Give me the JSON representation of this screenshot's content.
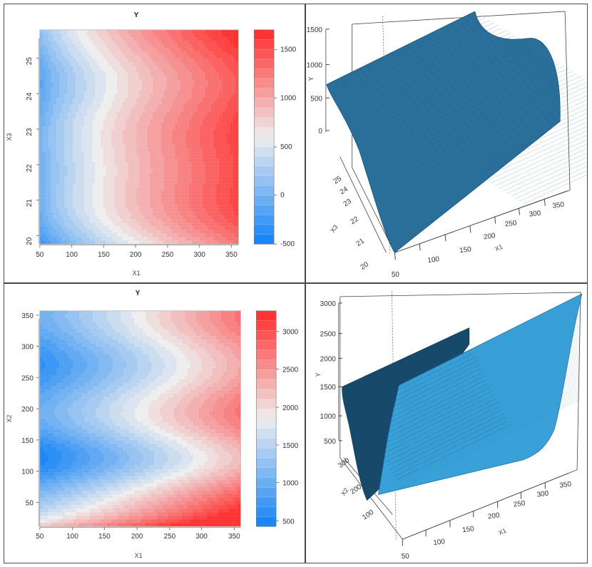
{
  "chart_data": [
    {
      "type": "heatmap",
      "title": "Y",
      "xlabel": "X1",
      "ylabel": "X3",
      "xlim": [
        50,
        360
      ],
      "ylim": [
        19.8,
        25.7
      ],
      "x_ticks": [
        "50",
        "100",
        "150",
        "200",
        "250",
        "300",
        "350"
      ],
      "y_ticks": [
        "20",
        "21",
        "22",
        "23",
        "24",
        "25"
      ],
      "colorbar_ticks": [
        "-500",
        "0",
        "500",
        "1000",
        "1500"
      ],
      "color_range": [
        -500,
        1700
      ],
      "colors": {
        "low": "#1a86f5",
        "mid": "#eeeeee",
        "high": "#ff3333"
      }
    },
    {
      "type": "surface",
      "zlabel": "Y",
      "xlabel": "X1",
      "ylabel": "X3",
      "z_ticks": [
        "0",
        "500",
        "1000",
        "1500"
      ],
      "y_ticks": [
        "20",
        "21",
        "22",
        "23",
        "24",
        "25"
      ],
      "x_ticks": [
        "50",
        "100",
        "150",
        "200",
        "250",
        "300",
        "350"
      ],
      "colors": {
        "surface": "#2a6f9a",
        "light": "#4f9bd0",
        "dark": "#184d70"
      }
    },
    {
      "type": "heatmap",
      "title": "Y",
      "xlabel": "X1",
      "ylabel": "X2",
      "xlim": [
        50,
        360
      ],
      "ylim": [
        10,
        355
      ],
      "x_ticks": [
        "50",
        "100",
        "150",
        "200",
        "250",
        "300",
        "350"
      ],
      "y_ticks": [
        "50",
        "100",
        "150",
        "200",
        "250",
        "300",
        "350"
      ],
      "colorbar_ticks": [
        "500",
        "1000",
        "1500",
        "2000",
        "2500",
        "3000"
      ],
      "color_range": [
        350,
        3200
      ],
      "colors": {
        "low": "#1a86f5",
        "mid": "#eeeeee",
        "high": "#ff3333"
      }
    },
    {
      "type": "surface",
      "zlabel": "Y",
      "xlabel": "X1",
      "ylabel": "X2",
      "z_ticks": [
        "500",
        "1000",
        "1500",
        "2000",
        "2500",
        "3000"
      ],
      "y_ticks": [
        "100",
        "200",
        "300"
      ],
      "x_ticks": [
        "50",
        "100",
        "150",
        "200",
        "250",
        "300",
        "350"
      ],
      "colors": {
        "surface": "#39a0d8",
        "light": "#54b3e8",
        "dark": "#17496b"
      }
    }
  ]
}
